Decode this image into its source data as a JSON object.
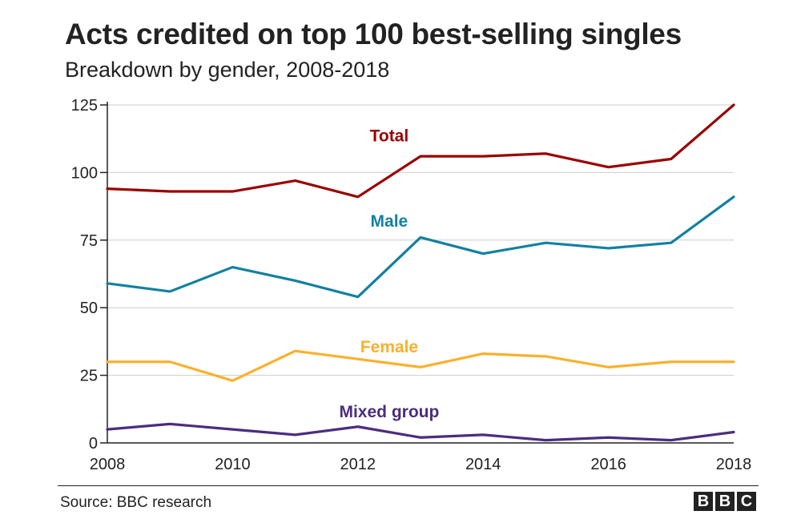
{
  "title": "Acts credited on top 100 best-selling singles",
  "subtitle": "Breakdown by gender, 2008-2018",
  "footer": {
    "source": "Source: BBC research",
    "logo_letters": [
      "B",
      "B",
      "C"
    ]
  },
  "colors": {
    "total": "#990000",
    "male": "#1380a1",
    "female": "#fbb02d",
    "mixed": "#4b2d7f",
    "grid": "#cbcbcb",
    "axis": "#222222"
  },
  "chart_data": {
    "type": "line",
    "title": "Acts credited on top 100 best-selling singles",
    "subtitle": "Breakdown by gender, 2008-2018",
    "xlabel": "",
    "ylabel": "",
    "x": [
      2008,
      2009,
      2010,
      2011,
      2012,
      2013,
      2014,
      2015,
      2016,
      2017,
      2018
    ],
    "xlim": [
      2008,
      2018
    ],
    "ylim": [
      0,
      125
    ],
    "x_ticks": [
      "2008",
      "2010",
      "2012",
      "2014",
      "2016",
      "2018"
    ],
    "y_ticks": [
      "0",
      "25",
      "50",
      "75",
      "100",
      "125"
    ],
    "grid": "horizontal",
    "legend": "inline labels",
    "series": [
      {
        "name": "Total",
        "key": "total",
        "values": [
          94,
          93,
          93,
          97,
          91,
          106,
          106,
          107,
          102,
          105,
          125
        ]
      },
      {
        "name": "Male",
        "key": "male",
        "values": [
          59,
          56,
          65,
          60,
          54,
          76,
          70,
          74,
          72,
          74,
          91
        ]
      },
      {
        "name": "Female",
        "key": "female",
        "values": [
          30,
          30,
          23,
          34,
          31,
          28,
          33,
          32,
          28,
          30,
          30
        ]
      },
      {
        "name": "Mixed group",
        "key": "mixed",
        "values": [
          5,
          7,
          5,
          3,
          6,
          2,
          3,
          1,
          2,
          1,
          4
        ]
      }
    ]
  }
}
